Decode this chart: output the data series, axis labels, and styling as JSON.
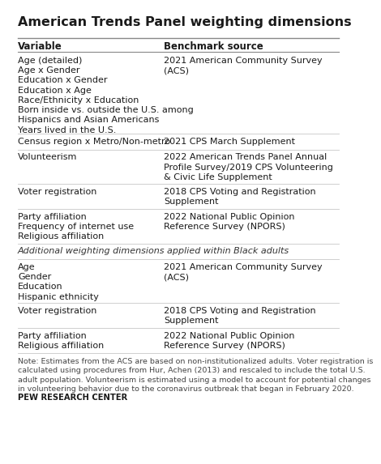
{
  "title": "American Trends Panel weighting dimensions",
  "bg_color": "#ffffff",
  "title_fontsize": 11.5,
  "header": [
    "Variable",
    "Benchmark source"
  ],
  "header_fontsize": 8.5,
  "body_fontsize": 8.0,
  "note_fontsize": 6.8,
  "footer_fontsize": 7.2,
  "rows": [
    {
      "var_lines": [
        "Age (detailed)",
        "Age x Gender",
        "Education x Gender",
        "Education x Age",
        "Race/Ethnicity x Education",
        "Born inside vs. outside the U.S. among",
        "Hispanics and Asian Americans",
        "Years lived in the U.S."
      ],
      "bench_lines": [
        "2021 American Community Survey",
        "(ACS)"
      ],
      "italic": false,
      "section_header": false
    },
    {
      "var_lines": [
        "Census region x Metro/Non-metro"
      ],
      "bench_lines": [
        "2021 CPS March Supplement"
      ],
      "italic": false,
      "section_header": false
    },
    {
      "var_lines": [
        "Volunteerism"
      ],
      "bench_lines": [
        "2022 American Trends Panel Annual",
        "Profile Survey/2019 CPS Volunteering",
        "& Civic Life Supplement"
      ],
      "italic": false,
      "section_header": false
    },
    {
      "var_lines": [
        "Voter registration"
      ],
      "bench_lines": [
        "2018 CPS Voting and Registration",
        "Supplement"
      ],
      "italic": false,
      "section_header": false
    },
    {
      "var_lines": [
        "Party affiliation",
        "Frequency of internet use",
        "Religious affiliation"
      ],
      "bench_lines": [
        "2022 National Public Opinion",
        "Reference Survey (NPORS)"
      ],
      "italic": false,
      "section_header": false
    },
    {
      "var_lines": [
        "Additional weighting dimensions applied within Black adults"
      ],
      "bench_lines": [],
      "italic": true,
      "section_header": true
    },
    {
      "var_lines": [
        "Age",
        "Gender",
        "Education",
        "Hispanic ethnicity"
      ],
      "bench_lines": [
        "2021 American Community Survey",
        "(ACS)"
      ],
      "italic": false,
      "section_header": false
    },
    {
      "var_lines": [
        "Voter registration"
      ],
      "bench_lines": [
        "2018 CPS Voting and Registration",
        "Supplement"
      ],
      "italic": false,
      "section_header": false
    },
    {
      "var_lines": [
        "Party affiliation",
        "Religious affiliation"
      ],
      "bench_lines": [
        "2022 National Public Opinion",
        "Reference Survey (NPORS)"
      ],
      "italic": false,
      "section_header": false
    }
  ],
  "note": "Note: Estimates from the ACS are based on non-institutionalized adults. Voter registration is\ncalculated using procedures from Hur, Achen (2013) and rescaled to include the total U.S.\nadult population. Volunteerism is estimated using a model to account for potential changes\nin volunteering behavior due to the coronavirus outbreak that began in February 2020.",
  "footer": "PEW RESEARCH CENTER",
  "text_color": "#1a1a1a",
  "note_color": "#444444",
  "line_color": "#c8c8c8",
  "title_line_color": "#888888",
  "header_line_color": "#888888"
}
